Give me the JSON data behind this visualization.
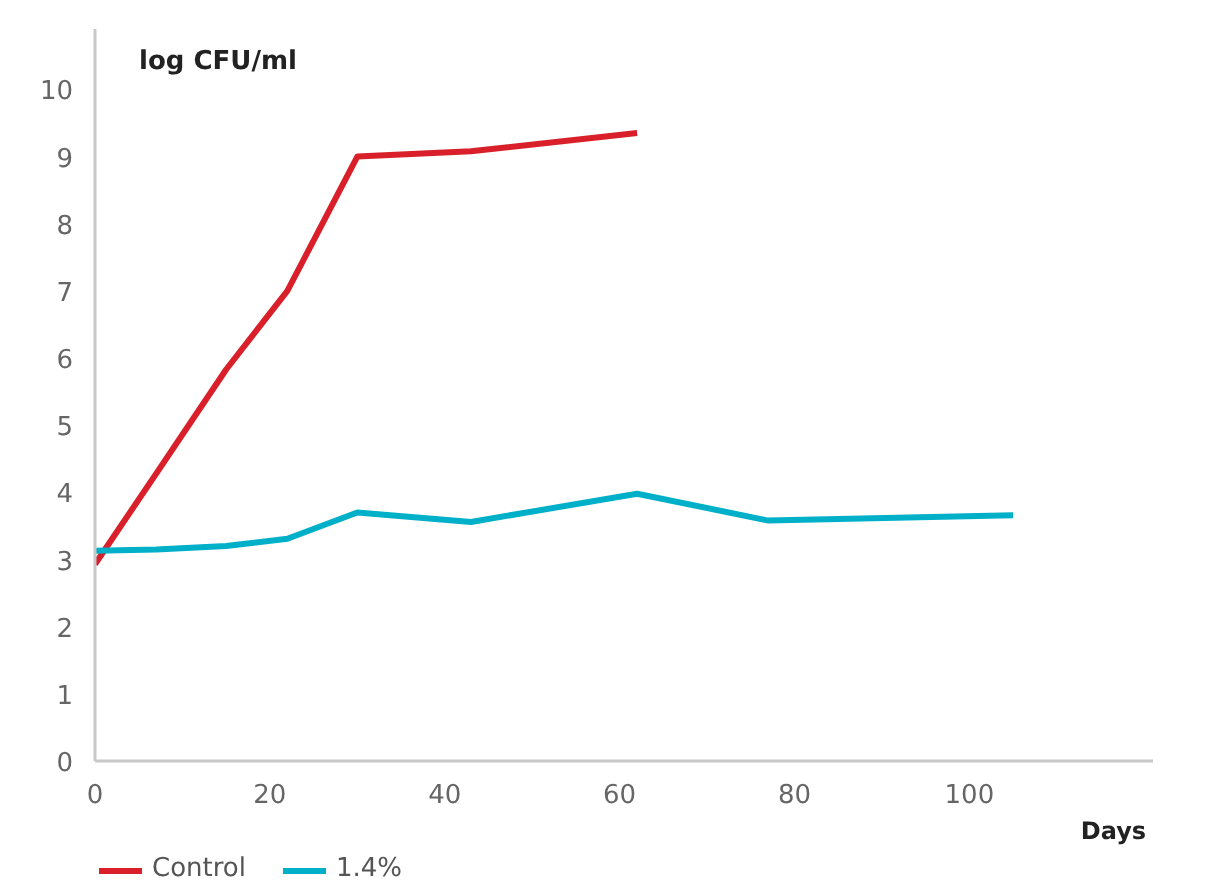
{
  "chart_data": {
    "type": "line",
    "xlabel": "Days",
    "ylabel": "log CFU/ml",
    "xlim": [
      0,
      121
    ],
    "ylim": [
      0,
      10.9
    ],
    "xticks": [
      0,
      20,
      40,
      60,
      80,
      100
    ],
    "yticks": [
      0,
      1,
      2,
      3,
      4,
      5,
      6,
      7,
      8,
      9,
      10
    ],
    "grid": false,
    "legend": "bottom",
    "marker": "none",
    "line_style": "solid",
    "series": [
      {
        "name": "Control",
        "color": "#d9202a",
        "x": [
          0,
          7,
          15,
          22,
          30,
          43,
          62
        ],
        "values": [
          2.93,
          4.28,
          5.83,
          7.0,
          9.0,
          9.08,
          9.35
        ]
      },
      {
        "name": "1.4%",
        "color": "#00b0c8",
        "x": [
          0,
          7,
          15,
          22,
          30,
          43,
          62,
          77,
          105
        ],
        "values": [
          3.13,
          3.15,
          3.2,
          3.31,
          3.7,
          3.56,
          3.98,
          3.58,
          3.66
        ]
      }
    ]
  }
}
